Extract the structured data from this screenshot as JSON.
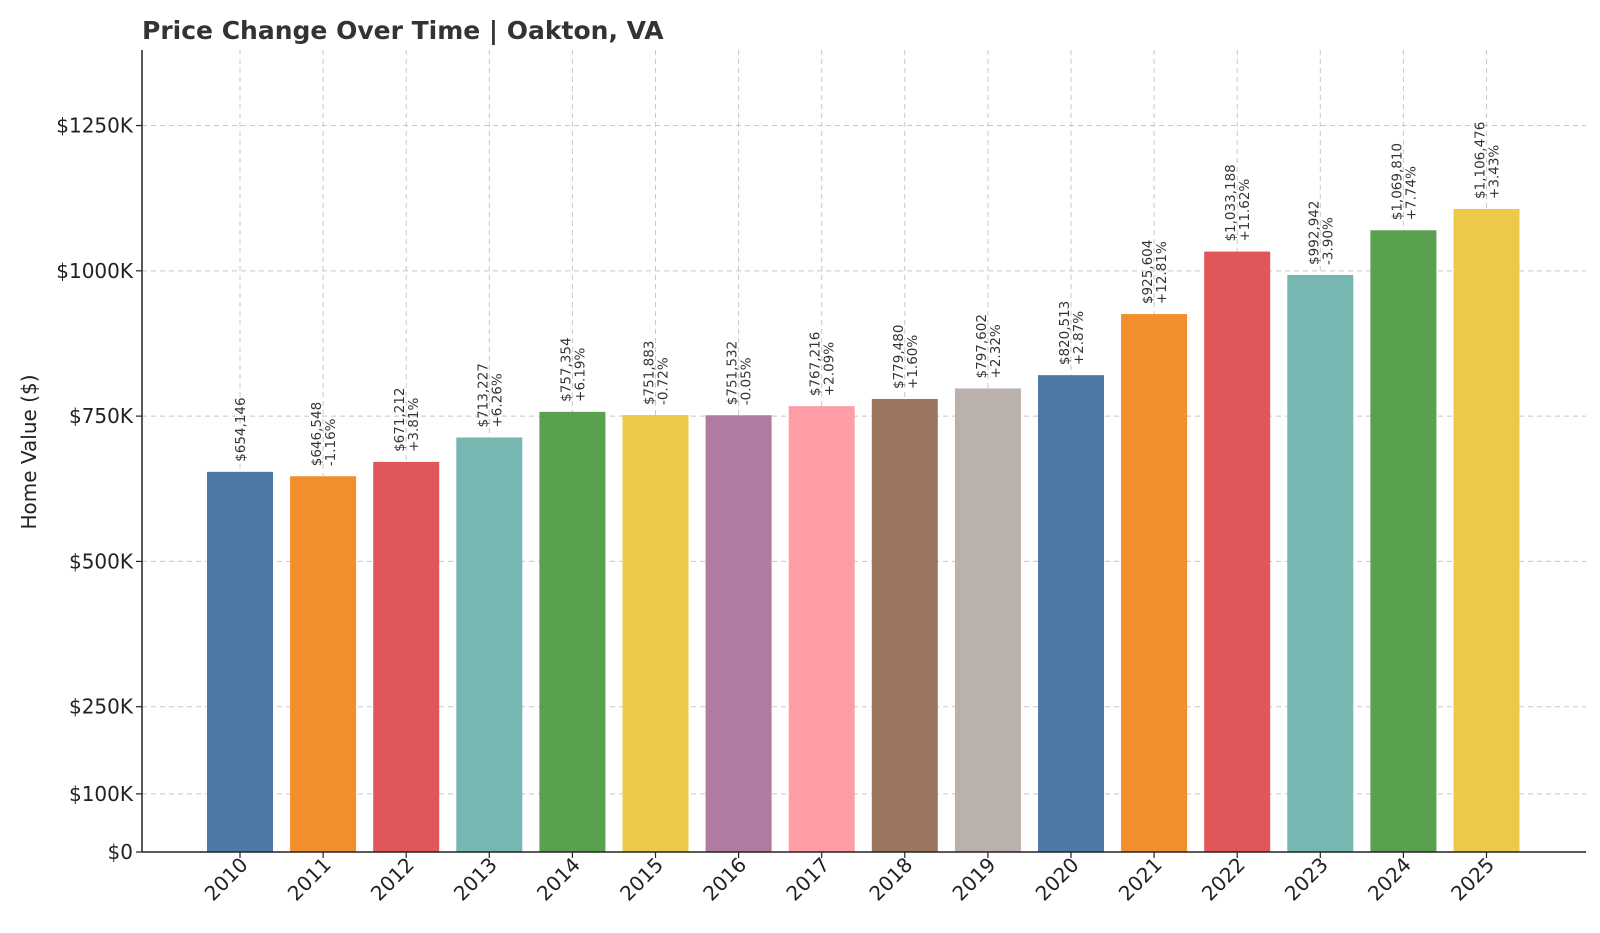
{
  "chart_data": {
    "type": "bar",
    "title": "Price Change Over Time | Oakton, VA",
    "xlabel": "",
    "ylabel": "Home Value ($)",
    "ylim": [
      0,
      1380000
    ],
    "grid": true,
    "yticks": [
      {
        "value": 0,
        "label": "$0"
      },
      {
        "value": 100000,
        "label": "$100K"
      },
      {
        "value": 250000,
        "label": "$250K"
      },
      {
        "value": 500000,
        "label": "$500K"
      },
      {
        "value": 750000,
        "label": "$750K"
      },
      {
        "value": 1000000,
        "label": "$1000K"
      },
      {
        "value": 1250000,
        "label": "$1250K"
      }
    ],
    "categories": [
      "2010",
      "2011",
      "2012",
      "2013",
      "2014",
      "2015",
      "2016",
      "2017",
      "2018",
      "2019",
      "2020",
      "2021",
      "2022",
      "2023",
      "2024",
      "2025"
    ],
    "values": [
      654146,
      646548,
      671212,
      713227,
      757354,
      751883,
      751532,
      767216,
      779480,
      797602,
      820513,
      925604,
      1033188,
      992942,
      1069810,
      1106476
    ],
    "value_labels": [
      "$654,146",
      "$646,548",
      "$671,212",
      "$713,227",
      "$757,354",
      "$751,883",
      "$751,532",
      "$767,216",
      "$779,480",
      "$797,602",
      "$820,513",
      "$925,604",
      "$1,033,188",
      "$992,942",
      "$1,069,810",
      "$1,106,476"
    ],
    "change_labels": [
      "",
      "-1.16%",
      "+3.81%",
      "+6.26%",
      "+6.19%",
      "-0.72%",
      "-0.05%",
      "+2.09%",
      "+1.60%",
      "+2.32%",
      "+2.87%",
      "+12.81%",
      "+11.62%",
      "-3.90%",
      "+7.74%",
      "+3.43%"
    ],
    "colors": [
      "#4e79a7",
      "#f28e2b",
      "#e15759",
      "#76b7b2",
      "#59a14f",
      "#edc948",
      "#b07aa1",
      "#ff9da7",
      "#9c755f",
      "#bab0ac",
      "#4e79a7",
      "#f28e2b",
      "#e15759",
      "#76b7b2",
      "#59a14f",
      "#edc948"
    ]
  }
}
